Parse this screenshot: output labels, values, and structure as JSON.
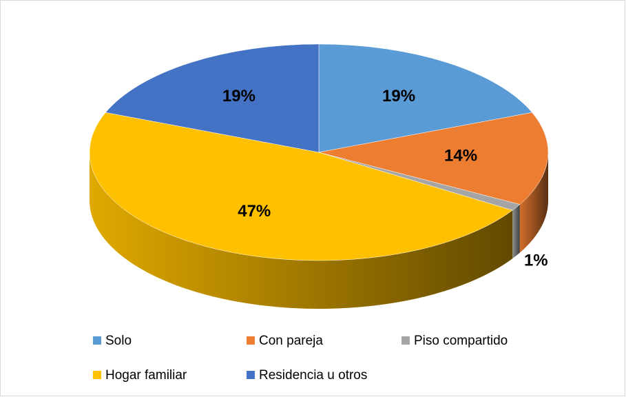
{
  "chart_data": {
    "type": "pie3d",
    "categories": [
      "Solo",
      "Con pareja",
      "Piso compartido",
      "Hogar familiar",
      "Residencia u otros"
    ],
    "values": [
      19,
      14,
      1,
      47,
      19
    ],
    "value_labels": [
      "19%",
      "14%",
      "1%",
      "47%",
      "19%"
    ],
    "colors": [
      "#5b9bd5",
      "#ed7d31",
      "#a5a5a5",
      "#ffc000",
      "#4472c4"
    ],
    "legend": "bottom"
  }
}
